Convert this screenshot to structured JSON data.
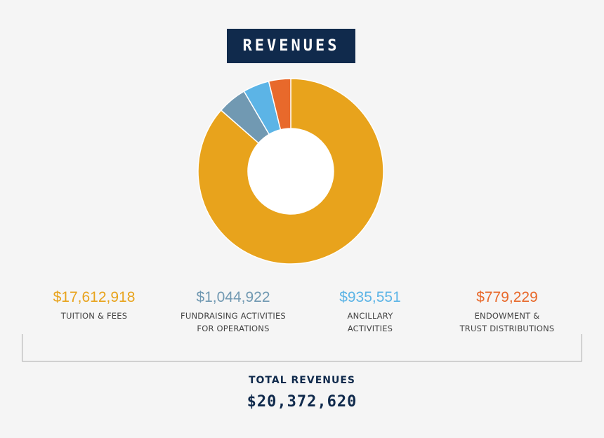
{
  "chart_data": {
    "type": "pie",
    "title": "REVENUES",
    "slices": [
      {
        "label": "TUITION & FEES",
        "display_value": "$17,612,918",
        "value": 17612918,
        "color": "#e8a31c"
      },
      {
        "label": "FUNDRAISING ACTIVITIES\nFOR OPERATIONS",
        "display_value": "$1,044,922",
        "value": 1044922,
        "color": "#7199b2"
      },
      {
        "label": "ANCILLARY\nACTIVITIES",
        "display_value": "$935,551",
        "value": 935551,
        "color": "#5cb4e6"
      },
      {
        "label": "ENDOWMENT &\nTRUST DISTRIBUTIONS",
        "display_value": "$779,229",
        "value": 779229,
        "color": "#e8692b"
      }
    ],
    "total_label": "TOTAL REVENUES",
    "total_value": "$20,372,620"
  },
  "colors": {
    "navy": "#102a4c",
    "background": "#f5f5f5"
  }
}
